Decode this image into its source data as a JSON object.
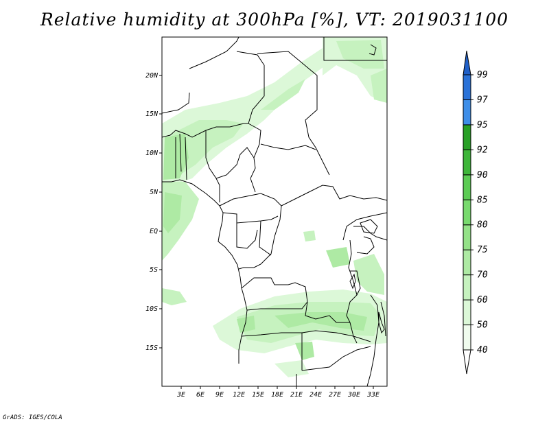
{
  "title": "Relative humidity at 300hPa [%], VT: 2019031100",
  "credit": "GrADS: IGES/COLA",
  "map": {
    "lat_labels": [
      "20N",
      "15N",
      "10N",
      "5N",
      "EQ",
      "5S",
      "10S",
      "15S"
    ],
    "lon_labels": [
      "3E",
      "6E",
      "9E",
      "12E",
      "15E",
      "18E",
      "21E",
      "24E",
      "27E",
      "30E",
      "33E"
    ]
  },
  "colorbar": {
    "levels": [
      "40",
      "50",
      "60",
      "70",
      "75",
      "80",
      "85",
      "90",
      "92",
      "95",
      "97",
      "99"
    ],
    "colors": [
      "#f0fcee",
      "#dcf8d8",
      "#c6f2bf",
      "#aeeaa4",
      "#94e288",
      "#78da6e",
      "#5ccc54",
      "#3eb63a",
      "#28a026",
      "#3e8ee8",
      "#2a72d8",
      "#2060c8"
    ]
  }
}
